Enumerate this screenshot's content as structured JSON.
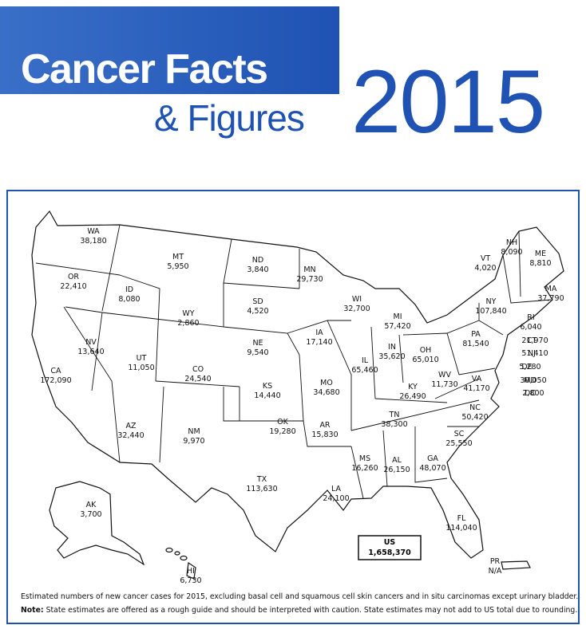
{
  "header": {
    "title_line1": "Cancer Facts",
    "title_line2": "& Figures",
    "year": "2015"
  },
  "map": {
    "states": [
      {
        "abbr": "WA",
        "value": "38,180"
      },
      {
        "abbr": "OR",
        "value": "22,410"
      },
      {
        "abbr": "ID",
        "value": "8,080"
      },
      {
        "abbr": "MT",
        "value": "5,950"
      },
      {
        "abbr": "ND",
        "value": "3,840"
      },
      {
        "abbr": "MN",
        "value": "29,730"
      },
      {
        "abbr": "WY",
        "value": "2,860"
      },
      {
        "abbr": "SD",
        "value": "4,520"
      },
      {
        "abbr": "WI",
        "value": "32,700"
      },
      {
        "abbr": "MI",
        "value": "57,420"
      },
      {
        "abbr": "NY",
        "value": "107,840"
      },
      {
        "abbr": "VT",
        "value": "4,020"
      },
      {
        "abbr": "NH",
        "value": "8,090"
      },
      {
        "abbr": "ME",
        "value": "8,810"
      },
      {
        "abbr": "MA",
        "value": "37,790"
      },
      {
        "abbr": "RI",
        "value": "6,040"
      },
      {
        "abbr": "CT",
        "value": "21,970"
      },
      {
        "abbr": "NJ",
        "value": "51,410"
      },
      {
        "abbr": "DE",
        "value": "5,280"
      },
      {
        "abbr": "MD",
        "value": "30,050"
      },
      {
        "abbr": "DC",
        "value": "2,800"
      },
      {
        "abbr": "NV",
        "value": "13,640"
      },
      {
        "abbr": "UT",
        "value": "11,050"
      },
      {
        "abbr": "CO",
        "value": "24,540"
      },
      {
        "abbr": "NE",
        "value": "9,540"
      },
      {
        "abbr": "IA",
        "value": "17,140"
      },
      {
        "abbr": "IL",
        "value": "65,460"
      },
      {
        "abbr": "IN",
        "value": "35,620"
      },
      {
        "abbr": "OH",
        "value": "65,010"
      },
      {
        "abbr": "PA",
        "value": "81,540"
      },
      {
        "abbr": "CA",
        "value": "172,090"
      },
      {
        "abbr": "KS",
        "value": "14,440"
      },
      {
        "abbr": "MO",
        "value": "34,680"
      },
      {
        "abbr": "KY",
        "value": "26,490"
      },
      {
        "abbr": "WV",
        "value": "11,730"
      },
      {
        "abbr": "VA",
        "value": "41,170"
      },
      {
        "abbr": "AZ",
        "value": "32,440"
      },
      {
        "abbr": "NM",
        "value": "9,970"
      },
      {
        "abbr": "OK",
        "value": "19,280"
      },
      {
        "abbr": "AR",
        "value": "15,830"
      },
      {
        "abbr": "TN",
        "value": "38,300"
      },
      {
        "abbr": "NC",
        "value": "50,420"
      },
      {
        "abbr": "SC",
        "value": "25,550"
      },
      {
        "abbr": "GA",
        "value": "48,070"
      },
      {
        "abbr": "AL",
        "value": "26,150"
      },
      {
        "abbr": "MS",
        "value": "16,260"
      },
      {
        "abbr": "TX",
        "value": "113,630"
      },
      {
        "abbr": "LA",
        "value": "24,100"
      },
      {
        "abbr": "FL",
        "value": "114,040"
      },
      {
        "abbr": "AK",
        "value": "3,700"
      },
      {
        "abbr": "HI",
        "value": "6,730"
      },
      {
        "abbr": "PR",
        "value": "N/A"
      }
    ],
    "total": {
      "label": "US",
      "value": "1,658,370"
    }
  },
  "footnote": {
    "line1": "Estimated numbers of new cancer cases for 2015, excluding basal cell and squamous cell skin cancers and in situ carcinomas except urinary bladder.",
    "note_label": "Note:",
    "note_text": " State estimates are offered as a rough guide and should be interpreted with caution. State estimates may not add to US total due to rounding."
  }
}
